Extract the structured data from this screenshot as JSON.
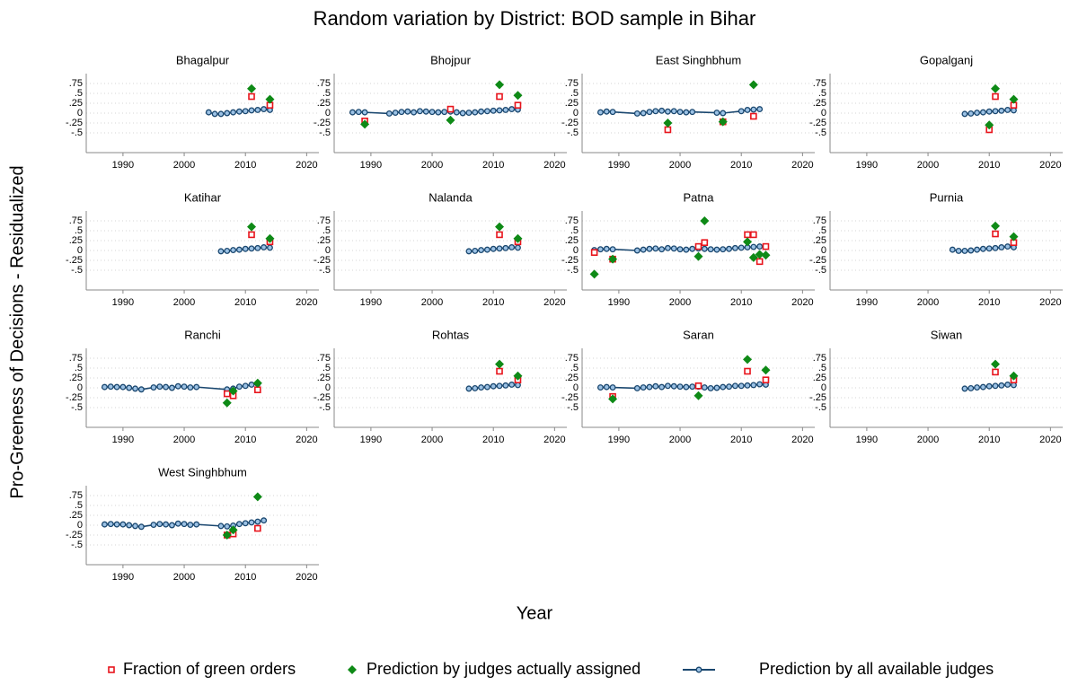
{
  "title": "Random variation by District: BOD sample in Bihar",
  "x_label": "Year",
  "y_label": "Pro-Greeness of Decisions - Residualized",
  "axes": {
    "xlim": [
      1984,
      2022
    ],
    "xticks": [
      1990,
      2000,
      2010,
      2020
    ],
    "ylim": [
      -1,
      1
    ],
    "yticks": [
      {
        "value": 0.75,
        "label": ".75"
      },
      {
        "value": 0.5,
        "label": ".5"
      },
      {
        "value": 0.25,
        "label": ".25"
      },
      0,
      {
        "value": -0.25,
        "label": "-.25"
      },
      {
        "value": -0.5,
        "label": "-.5"
      }
    ],
    "grid": true
  },
  "legend": [
    {
      "name": "Fraction of green orders",
      "color": "#e8141c",
      "marker": "square"
    },
    {
      "name": "Prediction by judges actually assigned",
      "color": "#0e8a16",
      "marker": "diamond"
    },
    {
      "name": "Prediction by all available judges",
      "color": "#1a476f",
      "marker": "line"
    }
  ],
  "chart_data": [
    {
      "type": "line",
      "title": "Bhagalpur",
      "series": [
        {
          "x": [
            2011,
            2014
          ],
          "values": [
            0.42,
            0.2
          ]
        },
        {
          "x": [
            2011,
            2014
          ],
          "values": [
            0.62,
            0.35
          ]
        },
        {
          "x": [
            2004,
            2005,
            2006,
            2007,
            2008,
            2009,
            2010,
            2011,
            2012,
            2013,
            2014
          ],
          "values": [
            0.02,
            -0.02,
            -0.02,
            0,
            0.02,
            0.04,
            0.05,
            0.07,
            0.08,
            0.1,
            0.08
          ]
        }
      ]
    },
    {
      "type": "line",
      "title": "Bhojpur",
      "series": [
        {
          "x": [
            1989,
            2003,
            2011,
            2014
          ],
          "values": [
            -0.2,
            0.1,
            0.42,
            0.2
          ]
        },
        {
          "x": [
            1989,
            2003,
            2011,
            2014
          ],
          "values": [
            -0.28,
            -0.18,
            0.72,
            0.45
          ]
        },
        {
          "x": [
            1987,
            1988,
            1989,
            1993,
            1994,
            1995,
            1996,
            1997,
            1998,
            1999,
            2000,
            2001,
            2002,
            2003,
            2004,
            2005,
            2006,
            2007,
            2008,
            2009,
            2010,
            2011,
            2012,
            2013,
            2014
          ],
          "values": [
            0.02,
            0.03,
            0.02,
            -0.01,
            0.01,
            0.03,
            0.04,
            0.02,
            0.05,
            0.04,
            0.03,
            0.02,
            0.03,
            0.04,
            0.02,
            0,
            0.01,
            0.02,
            0.04,
            0.05,
            0.06,
            0.07,
            0.08,
            0.1,
            0.09
          ]
        }
      ]
    },
    {
      "type": "line",
      "title": "East Singhbhum",
      "series": [
        {
          "x": [
            1998,
            2007,
            2012
          ],
          "values": [
            -0.42,
            -0.22,
            -0.08
          ]
        },
        {
          "x": [
            1998,
            2007,
            2012
          ],
          "values": [
            -0.25,
            -0.22,
            0.72
          ]
        },
        {
          "x": [
            1987,
            1988,
            1989,
            1993,
            1994,
            1995,
            1996,
            1997,
            1998,
            1999,
            2000,
            2001,
            2002,
            2006,
            2007,
            2010,
            2011,
            2012,
            2013
          ],
          "values": [
            0.02,
            0.04,
            0.03,
            -0.01,
            0,
            0.03,
            0.05,
            0.06,
            0.04,
            0.05,
            0.03,
            0.02,
            0.03,
            0.01,
            0,
            0.05,
            0.08,
            0.09,
            0.1
          ]
        }
      ]
    },
    {
      "type": "line",
      "title": "Gopalganj",
      "series": [
        {
          "x": [
            2010,
            2011,
            2014
          ],
          "values": [
            -0.42,
            0.42,
            0.2
          ]
        },
        {
          "x": [
            2010,
            2011,
            2014
          ],
          "values": [
            -0.3,
            0.62,
            0.35
          ]
        },
        {
          "x": [
            2006,
            2007,
            2008,
            2009,
            2010,
            2011,
            2012,
            2013,
            2014
          ],
          "values": [
            -0.02,
            -0.01,
            0.01,
            0.02,
            0.04,
            0.05,
            0.06,
            0.08,
            0.07
          ]
        }
      ]
    },
    {
      "type": "line",
      "title": "Katihar",
      "series": [
        {
          "x": [
            2011,
            2014
          ],
          "values": [
            0.4,
            0.22
          ]
        },
        {
          "x": [
            2011,
            2014
          ],
          "values": [
            0.6,
            0.3
          ]
        },
        {
          "x": [
            2006,
            2007,
            2008,
            2009,
            2010,
            2011,
            2012,
            2013,
            2014
          ],
          "values": [
            -0.02,
            -0.01,
            0.01,
            0.02,
            0.04,
            0.05,
            0.06,
            0.08,
            0.07
          ]
        }
      ]
    },
    {
      "type": "line",
      "title": "Nalanda",
      "series": [
        {
          "x": [
            2011,
            2014
          ],
          "values": [
            0.4,
            0.22
          ]
        },
        {
          "x": [
            2011,
            2014
          ],
          "values": [
            0.6,
            0.3
          ]
        },
        {
          "x": [
            2006,
            2007,
            2008,
            2009,
            2010,
            2011,
            2012,
            2013,
            2014
          ],
          "values": [
            -0.02,
            -0.01,
            0.01,
            0.02,
            0.04,
            0.05,
            0.06,
            0.08,
            0.07
          ]
        }
      ]
    },
    {
      "type": "line",
      "title": "Patna",
      "series": [
        {
          "x": [
            1986,
            1989,
            2003,
            2004,
            2011,
            2012,
            2013,
            2014
          ],
          "values": [
            -0.05,
            -0.22,
            0.1,
            0.2,
            0.4,
            0.4,
            -0.28,
            0.1
          ]
        },
        {
          "x": [
            1986,
            1989,
            2003,
            2004,
            2011,
            2012,
            2013,
            2014
          ],
          "values": [
            -0.6,
            -0.22,
            -0.15,
            0.75,
            0.22,
            -0.18,
            -0.1,
            -0.12
          ]
        },
        {
          "x": [
            1986,
            1987,
            1988,
            1989,
            1993,
            1994,
            1995,
            1996,
            1997,
            1998,
            1999,
            2000,
            2001,
            2002,
            2003,
            2004,
            2005,
            2006,
            2007,
            2008,
            2009,
            2010,
            2011,
            2012,
            2013,
            2014
          ],
          "values": [
            0.01,
            0.03,
            0.04,
            0.03,
            0,
            0.02,
            0.04,
            0.05,
            0.03,
            0.06,
            0.05,
            0.03,
            0.02,
            0.04,
            0.05,
            0.04,
            0.03,
            0.02,
            0.03,
            0.04,
            0.06,
            0.07,
            0.08,
            0.09,
            0.1,
            0.09
          ]
        }
      ]
    },
    {
      "type": "line",
      "title": "Purnia",
      "series": [
        {
          "x": [
            2011,
            2014
          ],
          "values": [
            0.42,
            0.2
          ]
        },
        {
          "x": [
            2011,
            2014
          ],
          "values": [
            0.62,
            0.35
          ]
        },
        {
          "x": [
            2004,
            2005,
            2006,
            2007,
            2008,
            2009,
            2010,
            2011,
            2012,
            2013,
            2014
          ],
          "values": [
            0.02,
            -0.01,
            -0.01,
            0,
            0.02,
            0.04,
            0.05,
            0.06,
            0.08,
            0.1,
            0.08
          ]
        }
      ]
    },
    {
      "type": "line",
      "title": "Ranchi",
      "series": [
        {
          "x": [
            2007,
            2008,
            2012
          ],
          "values": [
            -0.15,
            -0.2,
            -0.05
          ]
        },
        {
          "x": [
            2007,
            2008,
            2012
          ],
          "values": [
            -0.38,
            -0.08,
            0.12
          ]
        },
        {
          "x": [
            1987,
            1988,
            1989,
            1990,
            1991,
            1992,
            1993,
            1995,
            1996,
            1997,
            1998,
            1999,
            2000,
            2001,
            2002,
            2007,
            2008,
            2009,
            2010,
            2011,
            2012
          ],
          "values": [
            0.02,
            0.03,
            0.02,
            0.02,
            0,
            -0.02,
            -0.04,
            0.01,
            0.03,
            0.02,
            0,
            0.04,
            0.03,
            0.01,
            0.02,
            -0.04,
            -0.02,
            0.03,
            0.05,
            0.08,
            0.1
          ]
        }
      ]
    },
    {
      "type": "line",
      "title": "Rohtas",
      "series": [
        {
          "x": [
            2011,
            2014
          ],
          "values": [
            0.42,
            0.2
          ]
        },
        {
          "x": [
            2011,
            2014
          ],
          "values": [
            0.6,
            0.3
          ]
        },
        {
          "x": [
            2006,
            2007,
            2008,
            2009,
            2010,
            2011,
            2012,
            2013,
            2014
          ],
          "values": [
            -0.02,
            -0.01,
            0.01,
            0.02,
            0.04,
            0.05,
            0.06,
            0.08,
            0.07
          ]
        }
      ]
    },
    {
      "type": "line",
      "title": "Saran",
      "series": [
        {
          "x": [
            1989,
            2003,
            2011,
            2014
          ],
          "values": [
            -0.22,
            0.05,
            0.42,
            0.2
          ]
        },
        {
          "x": [
            1989,
            2003,
            2011,
            2014
          ],
          "values": [
            -0.28,
            -0.2,
            0.72,
            0.45
          ]
        },
        {
          "x": [
            1987,
            1988,
            1989,
            1993,
            1994,
            1995,
            1996,
            1997,
            1998,
            1999,
            2000,
            2001,
            2002,
            2003,
            2004,
            2005,
            2006,
            2007,
            2008,
            2009,
            2010,
            2011,
            2012,
            2013,
            2014
          ],
          "values": [
            0.01,
            0.02,
            0.01,
            -0.01,
            0.01,
            0.02,
            0.04,
            0.02,
            0.05,
            0.04,
            0.03,
            0.02,
            0.03,
            0.03,
            0.01,
            -0.01,
            0,
            0.02,
            0.03,
            0.05,
            0.05,
            0.06,
            0.07,
            0.09,
            0.08
          ]
        }
      ]
    },
    {
      "type": "line",
      "title": "Siwan",
      "series": [
        {
          "x": [
            2011,
            2014
          ],
          "values": [
            0.4,
            0.2
          ]
        },
        {
          "x": [
            2011,
            2014
          ],
          "values": [
            0.6,
            0.3
          ]
        },
        {
          "x": [
            2006,
            2007,
            2008,
            2009,
            2010,
            2011,
            2012,
            2013,
            2014
          ],
          "values": [
            -0.02,
            -0.01,
            0.01,
            0.02,
            0.04,
            0.05,
            0.06,
            0.08,
            0.07
          ]
        }
      ]
    },
    {
      "type": "line",
      "title": "West Singhbhum",
      "series": [
        {
          "x": [
            2007,
            2008,
            2012
          ],
          "values": [
            -0.25,
            -0.22,
            -0.08
          ]
        },
        {
          "x": [
            2007,
            2008,
            2012
          ],
          "values": [
            -0.25,
            -0.12,
            0.72
          ]
        },
        {
          "x": [
            1987,
            1988,
            1989,
            1990,
            1991,
            1992,
            1993,
            1995,
            1996,
            1997,
            1998,
            1999,
            2000,
            2001,
            2002,
            2006,
            2007,
            2008,
            2009,
            2010,
            2011,
            2012,
            2013
          ],
          "values": [
            0.02,
            0.03,
            0.02,
            0.02,
            0,
            -0.02,
            -0.04,
            0.01,
            0.03,
            0.02,
            0,
            0.04,
            0.03,
            0.01,
            0.02,
            -0.02,
            -0.03,
            -0.01,
            0.03,
            0.05,
            0.07,
            0.09,
            0.12
          ]
        }
      ]
    }
  ]
}
